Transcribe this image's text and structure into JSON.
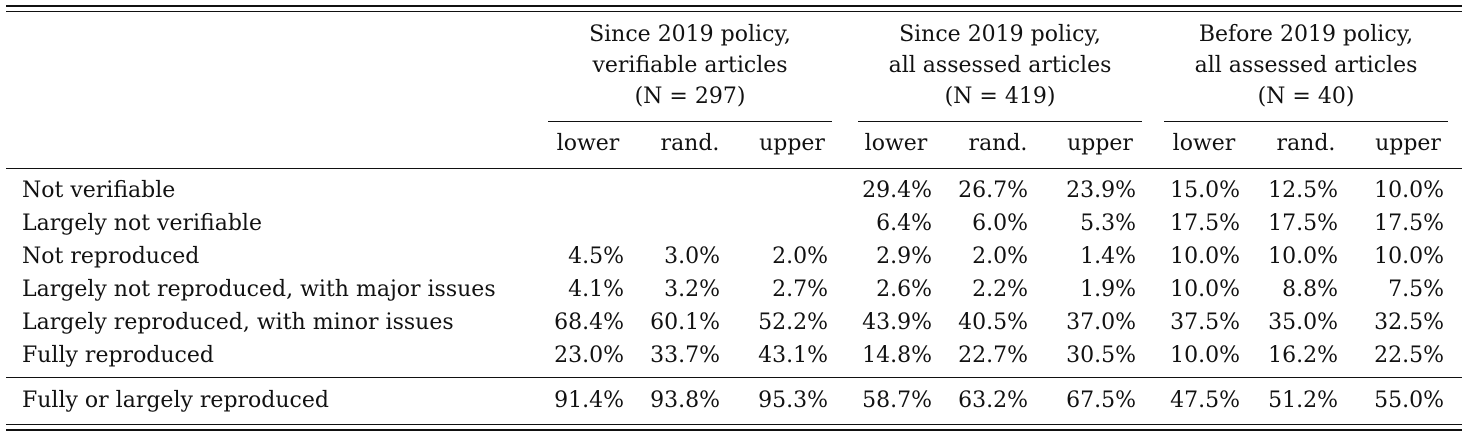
{
  "groups": [
    {
      "line1": "Since 2019 policy,",
      "line2": "verifiable articles",
      "n": "(N = 297)"
    },
    {
      "line1": "Since 2019 policy,",
      "line2": "all assessed articles",
      "n": "(N = 419)"
    },
    {
      "line1": "Before 2019 policy,",
      "line2": "all assessed articles",
      "n": "(N = 40)"
    }
  ],
  "subheaders": [
    "lower",
    "rand.",
    "upper"
  ],
  "rows": [
    {
      "label": "Not verifiable",
      "values": [
        "",
        "",
        "",
        "29.4%",
        "26.7%",
        "23.9%",
        "15.0%",
        "12.5%",
        "10.0%"
      ]
    },
    {
      "label": "Largely not verifiable",
      "values": [
        "",
        "",
        "",
        "6.4%",
        "6.0%",
        "5.3%",
        "17.5%",
        "17.5%",
        "17.5%"
      ]
    },
    {
      "label": "Not reproduced",
      "values": [
        "4.5%",
        "3.0%",
        "2.0%",
        "2.9%",
        "2.0%",
        "1.4%",
        "10.0%",
        "10.0%",
        "10.0%"
      ]
    },
    {
      "label": "Largely not reproduced, with major issues",
      "values": [
        "4.1%",
        "3.2%",
        "2.7%",
        "2.6%",
        "2.2%",
        "1.9%",
        "10.0%",
        "8.8%",
        "7.5%"
      ]
    },
    {
      "label": "Largely reproduced, with minor issues",
      "values": [
        "68.4%",
        "60.1%",
        "52.2%",
        "43.9%",
        "40.5%",
        "37.0%",
        "37.5%",
        "35.0%",
        "32.5%"
      ]
    },
    {
      "label": "Fully reproduced",
      "values": [
        "23.0%",
        "33.7%",
        "43.1%",
        "14.8%",
        "22.7%",
        "30.5%",
        "10.0%",
        "16.2%",
        "22.5%"
      ]
    }
  ],
  "summary": {
    "label": "Fully or largely reproduced",
    "values": [
      "91.4%",
      "93.8%",
      "95.3%",
      "58.7%",
      "63.2%",
      "67.5%",
      "47.5%",
      "51.2%",
      "55.0%"
    ]
  }
}
